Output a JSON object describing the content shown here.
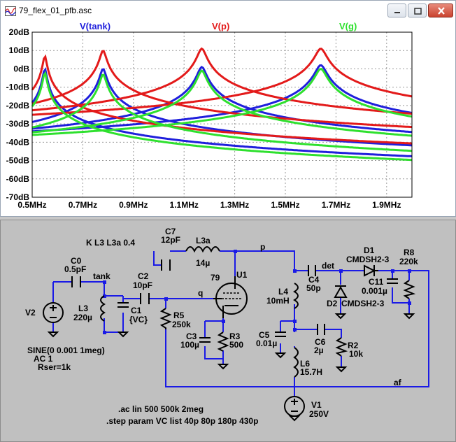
{
  "window": {
    "title": "79_flex_01_pfb.asc"
  },
  "plot": {
    "colors": {
      "tank": "#1f1fdc",
      "p": "#e31a1a",
      "g": "#2ee02e"
    }
  },
  "chart_data": {
    "type": "line",
    "title": "",
    "xlabel": "",
    "ylabel": "",
    "xlim": [
      0.5,
      2.0
    ],
    "ylim": [
      -70,
      20
    ],
    "x_ticks": [
      "0.5MHz",
      "0.7MHz",
      "0.9MHz",
      "1.1MHz",
      "1.3MHz",
      "1.5MHz",
      "1.7MHz",
      "1.9MHz"
    ],
    "y_ticks": [
      "20dB",
      "10dB",
      "0dB",
      "-10dB",
      "-20dB",
      "-30dB",
      "-40dB",
      "-50dB",
      "-60dB",
      "-70dB"
    ],
    "grid": true,
    "legend": [
      "V(tank)",
      "V(p)",
      "V(g)"
    ],
    "resonances_mhz": [
      0.55,
      0.78,
      1.17,
      1.64
    ],
    "series": [
      {
        "name": "V(tank)",
        "peaks_db": [
          0,
          0,
          1,
          2
        ],
        "floor_db": [
          -53,
          -50,
          -47,
          -44
        ]
      },
      {
        "name": "V(p)",
        "peaks_db": [
          7,
          10,
          11,
          11
        ],
        "floor_db": [
          -45,
          -42,
          -40,
          -37
        ]
      },
      {
        "name": "V(g)",
        "peaks_db": [
          -2,
          -3,
          -1,
          0
        ],
        "floor_db": [
          -66,
          -63,
          -60,
          -57
        ]
      }
    ]
  },
  "schematic": {
    "labels": {
      "k": "K L3 L3a 0.4",
      "c7": "C7",
      "c7v": "12pF",
      "l3a": "L3a",
      "l3av": "14µ",
      "p": "p",
      "c0": "C0",
      "c0v": "0.5pF",
      "tank": "tank",
      "c2": "C2",
      "c2v": "10pF",
      "q": "q",
      "n79": "79",
      "u1": "U1",
      "v2": "V2",
      "l3": "L3",
      "l3v": "220µ",
      "c1": "C1",
      "c1v": "{VC}",
      "r5": "R5",
      "r5v": "250k",
      "c3": "C3",
      "c3v": "100µ",
      "r3": "R3",
      "r3v": "500",
      "sine": "SINE(0 0.001 1meg)",
      "ac": "AC 1",
      "rser": "Rser=1k",
      "c4": "C4",
      "c4v": "50p",
      "det": "det",
      "d1": "D1",
      "d1v": "CMDSH2-3",
      "r8": "R8",
      "r8v": "220k",
      "l4": "L4",
      "l4v": "10mH",
      "d2": "D2",
      "d2v": "CMDSH2-3",
      "c11": "C11",
      "c11v": "0.001µ",
      "c5": "C5",
      "c5v": "0.01µ",
      "c6": "C6",
      "c6v": "2µ",
      "r2": "R2",
      "r2v": "10k",
      "l6": "L6",
      "l6v": "15.7H",
      "af": "af",
      "v1": "V1",
      "v1v": "250V",
      "ac_cmd": ".ac lin 500 500k 2meg",
      "step_cmd": ".step param VC list 40p 80p 180p 430p"
    }
  }
}
